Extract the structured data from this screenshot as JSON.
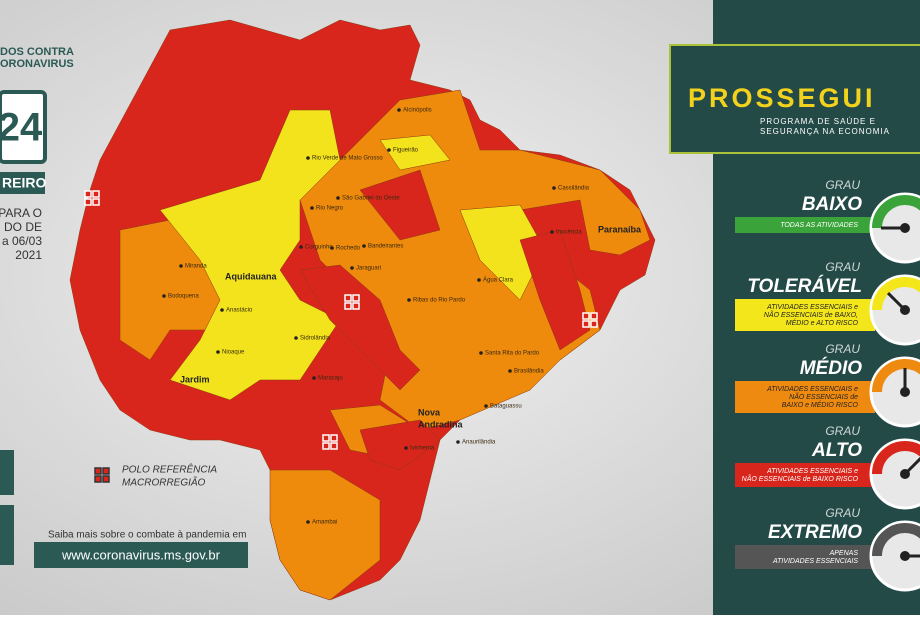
{
  "header": {
    "logo_line1": "DOS CONTRA",
    "logo_line2": "ORONAVIRUS"
  },
  "calendar": {
    "day": "24",
    "month": "REIRO",
    "period": [
      "PARA O",
      "DO DE",
      "a 06/03",
      "2021"
    ]
  },
  "map": {
    "cities": [
      "Aquidauana",
      "Jardim",
      "Nova",
      "Andradina",
      "Paranaíba",
      "Miranda",
      "Bodoquena",
      "Anastácio",
      "Nioaque",
      "Maracaju",
      "Sidrolândia",
      "Rio Verde de Mato Grosso",
      "Figueirão",
      "Alcinópolis",
      "Cassilândia",
      "Inocência",
      "Água Clara",
      "Ribas do Rio Pardo",
      "Santa Rita do Pardo",
      "Brasilândia",
      "Bataguassu",
      "Anaurilândia",
      "Ivinhema",
      "Amambai",
      "São Gabriel do Oeste",
      "Rio Negro",
      "Corguinho",
      "Rochedo",
      "Bandeirantes",
      "Jaraguari"
    ]
  },
  "legend": [
    "POLO REFERÊNCIA",
    "MACRORREGIÃO"
  ],
  "footer": {
    "text": "Saiba mais sobre o combate à pandemia em",
    "url": "www.coronavirus.ms.gov.br"
  },
  "program": {
    "title": "PROSSEGUI",
    "subtitle": [
      "PROGRAMA DE SAÚDE E",
      "SEGURANÇA NA ECONOMIA"
    ]
  },
  "levels": [
    {
      "grau": "GRAU",
      "name": "BAIXO",
      "description": [
        "TODAS AS ATIVIDADES"
      ]
    },
    {
      "grau": "GRAU",
      "name": "TOLERÁVEL",
      "description": [
        "ATIVIDADES ESSENCIAIS e",
        "NÃO ESSENCIAIS de BAIXO,",
        "MÉDIO e ALTO RISCO"
      ]
    },
    {
      "grau": "GRAU",
      "name": "MÉDIO",
      "description": [
        "ATIVIDADES ESSENCIAIS e",
        "NÃO ESSENCIAIS de",
        "BAIXO e MÉDIO RISCO"
      ]
    },
    {
      "grau": "GRAU",
      "name": "ALTO",
      "description": [
        "ATIVIDADES ESSENCIAIS e",
        "NÃO ESSENCIAIS de BAIXO RISCO"
      ]
    },
    {
      "grau": "GRAU",
      "name": "EXTREMO",
      "description": [
        "APENAS",
        "ATIVIDADES ESSENCIAIS"
      ]
    }
  ]
}
